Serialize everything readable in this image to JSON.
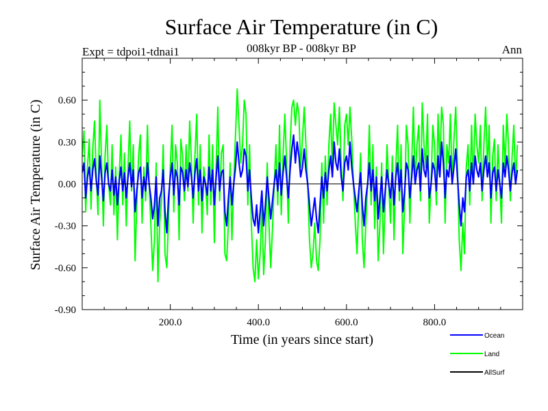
{
  "chart_data": {
    "type": "line",
    "title": "Surface Air Temperature (in C)",
    "subtitle": "008kyr BP - 008kyr BP",
    "left_label": "Expt = tdpoi1-tdnai1",
    "right_label": "Ann",
    "xlabel": "Time (in years since start)",
    "ylabel": "Surface Air Temperature (in C)",
    "xlim": [
      0,
      1000
    ],
    "ylim": [
      -0.9,
      0.9
    ],
    "xticks": [
      200,
      400,
      600,
      800
    ],
    "xtick_labels": [
      "200.0",
      "400.0",
      "600.0",
      "800.0"
    ],
    "yticks": [
      -0.9,
      -0.6,
      -0.3,
      0.0,
      0.3,
      0.6
    ],
    "ytick_labels": [
      "-0.90",
      "-0.60",
      "-0.30",
      "0.00",
      "0.30",
      "0.60"
    ],
    "zero_line": true,
    "legend_position": "bottom-right",
    "series": [
      {
        "name": "Ocean",
        "color": "#0000ff",
        "x_start": 0,
        "x_step": 4,
        "values": [
          0.08,
          0.15,
          -0.1,
          0.05,
          0.12,
          -0.05,
          0.1,
          0.18,
          0.02,
          -0.08,
          0.2,
          0.05,
          -0.12,
          0.08,
          0.15,
          0.0,
          -0.05,
          0.1,
          -0.08,
          0.05,
          -0.15,
          0.02,
          0.12,
          -0.05,
          0.08,
          -0.1,
          0.05,
          0.15,
          -0.02,
          0.1,
          -0.2,
          -0.05,
          0.08,
          0.12,
          -0.1,
          0.05,
          -0.05,
          0.15,
          0.0,
          -0.1,
          -0.25,
          -0.15,
          0.05,
          -0.3,
          -0.1,
          -0.05,
          0.1,
          -0.2,
          -0.35,
          -0.1,
          0.05,
          0.15,
          -0.08,
          0.1,
          0.05,
          -0.15,
          0.12,
          0.08,
          -0.05,
          0.1,
          -0.02,
          0.15,
          0.05,
          -0.1,
          0.08,
          0.18,
          -0.05,
          0.1,
          -0.12,
          0.05,
          0.0,
          -0.08,
          0.12,
          -0.05,
          0.1,
          -0.15,
          0.05,
          0.2,
          -0.05,
          0.08,
          0.1,
          -0.2,
          -0.3,
          -0.1,
          0.05,
          -0.15,
          0.0,
          0.12,
          0.3,
          0.15,
          0.05,
          0.1,
          0.25,
          0.2,
          -0.05,
          0.1,
          -0.1,
          -0.25,
          -0.3,
          -0.15,
          -0.35,
          -0.2,
          -0.05,
          -0.3,
          -0.15,
          0.05,
          -0.1,
          -0.25,
          -0.12,
          0.0,
          0.1,
          -0.05,
          0.15,
          -0.08,
          0.08,
          0.2,
          0.05,
          -0.1,
          0.1,
          0.25,
          0.35,
          0.15,
          0.3,
          0.2,
          0.05,
          0.12,
          0.25,
          0.1,
          0.0,
          -0.15,
          -0.3,
          -0.2,
          -0.1,
          -0.25,
          -0.35,
          -0.15,
          0.05,
          -0.1,
          0.08,
          -0.05,
          0.1,
          0.2,
          0.05,
          0.3,
          0.15,
          0.1,
          0.25,
          0.05,
          -0.05,
          0.15,
          0.2,
          0.1,
          0.3,
          0.12,
          0.0,
          -0.1,
          -0.2,
          -0.05,
          0.08,
          -0.15,
          -0.3,
          -0.1,
          0.0,
          0.15,
          -0.05,
          0.1,
          -0.12,
          0.05,
          -0.25,
          -0.1,
          0.05,
          -0.2,
          -0.05,
          0.1,
          0.0,
          -0.1,
          0.08,
          -0.15,
          0.05,
          0.15,
          -0.05,
          0.1,
          -0.2,
          -0.05,
          0.15,
          0.1,
          -0.1,
          0.05,
          0.2,
          0.0,
          0.1,
          0.15,
          -0.05,
          0.25,
          0.1,
          0.05,
          0.2,
          -0.1,
          0.0,
          0.15,
          0.1,
          -0.05,
          0.2,
          0.05,
          0.3,
          0.15,
          -0.1,
          0.1,
          0.05,
          0.2,
          0.0,
          0.12,
          0.25,
          0.05,
          -0.15,
          -0.3,
          -0.1,
          -0.2,
          0.05,
          0.1,
          -0.05,
          0.15,
          0.0,
          0.2,
          0.1,
          0.05,
          0.15,
          -0.05,
          0.1,
          0.2,
          0.05,
          0.15,
          -0.1,
          0.08,
          0.12,
          -0.05,
          0.1,
          0.0,
          -0.1,
          0.15,
          0.05,
          0.2,
          0.1,
          -0.05,
          0.08,
          0.15,
          0.0,
          0.1
        ]
      },
      {
        "name": "Land",
        "color": "#00ff00",
        "x_start": 0,
        "x_step": 4,
        "values": [
          0.2,
          0.38,
          -0.2,
          0.12,
          0.32,
          -0.18,
          0.25,
          0.45,
          0.05,
          -0.22,
          0.6,
          0.15,
          -0.3,
          0.2,
          0.42,
          0.0,
          -0.15,
          0.28,
          -0.22,
          0.12,
          -0.4,
          0.05,
          0.35,
          -0.15,
          0.22,
          -0.3,
          0.12,
          0.45,
          -0.05,
          0.28,
          -0.55,
          -0.15,
          0.2,
          0.35,
          -0.28,
          0.12,
          -0.12,
          0.42,
          0.0,
          -0.3,
          -0.62,
          -0.4,
          0.15,
          -0.7,
          -0.28,
          -0.12,
          0.28,
          -0.5,
          -0.6,
          -0.25,
          0.12,
          0.42,
          -0.2,
          0.28,
          0.15,
          -0.4,
          0.32,
          0.2,
          -0.12,
          0.28,
          -0.05,
          0.45,
          0.15,
          -0.28,
          0.2,
          0.5,
          -0.15,
          0.28,
          -0.35,
          0.12,
          0.0,
          -0.22,
          0.35,
          -0.15,
          0.28,
          -0.42,
          0.12,
          0.55,
          -0.12,
          0.22,
          0.28,
          -0.5,
          -0.55,
          -0.28,
          0.15,
          -0.4,
          0.0,
          0.35,
          0.68,
          0.42,
          0.15,
          0.28,
          0.6,
          0.5,
          -0.15,
          0.28,
          -0.28,
          -0.6,
          -0.7,
          -0.4,
          -0.68,
          -0.5,
          -0.15,
          -0.65,
          -0.4,
          0.15,
          -0.28,
          -0.6,
          -0.32,
          0.0,
          0.28,
          -0.15,
          0.42,
          -0.22,
          0.2,
          0.5,
          0.15,
          -0.28,
          0.28,
          0.55,
          0.6,
          0.42,
          0.58,
          0.5,
          0.12,
          0.32,
          0.55,
          0.28,
          0.0,
          -0.4,
          -0.6,
          -0.5,
          -0.28,
          -0.55,
          -0.62,
          -0.4,
          0.15,
          -0.28,
          0.2,
          -0.15,
          0.28,
          0.5,
          0.12,
          0.58,
          0.42,
          0.28,
          0.55,
          0.15,
          -0.12,
          0.42,
          0.5,
          0.28,
          0.55,
          0.32,
          0.0,
          -0.28,
          -0.5,
          -0.12,
          0.22,
          -0.4,
          -0.6,
          -0.28,
          0.0,
          0.42,
          -0.15,
          0.28,
          -0.32,
          0.12,
          -0.55,
          -0.28,
          0.15,
          -0.5,
          -0.12,
          0.28,
          0.0,
          -0.28,
          0.2,
          -0.4,
          0.12,
          0.42,
          -0.12,
          0.28,
          -0.5,
          -0.15,
          0.42,
          0.28,
          -0.28,
          0.15,
          0.55,
          0.0,
          0.28,
          0.42,
          -0.12,
          0.58,
          0.28,
          0.12,
          0.5,
          -0.28,
          0.0,
          0.42,
          0.28,
          -0.15,
          0.5,
          0.12,
          0.55,
          0.42,
          -0.28,
          0.28,
          0.15,
          0.5,
          0.0,
          0.32,
          0.55,
          0.15,
          -0.4,
          -0.62,
          -0.28,
          -0.5,
          0.12,
          0.28,
          -0.15,
          0.42,
          0.0,
          0.5,
          0.28,
          0.15,
          0.42,
          -0.12,
          0.28,
          0.55,
          0.12,
          0.42,
          -0.28,
          0.2,
          0.32,
          -0.12,
          0.28,
          0.0,
          -0.28,
          0.42,
          0.12,
          0.5,
          0.28,
          -0.12,
          0.2,
          0.42,
          0.0,
          0.28
        ]
      },
      {
        "name": "AllSurf",
        "color": "#000000",
        "values": []
      }
    ]
  }
}
